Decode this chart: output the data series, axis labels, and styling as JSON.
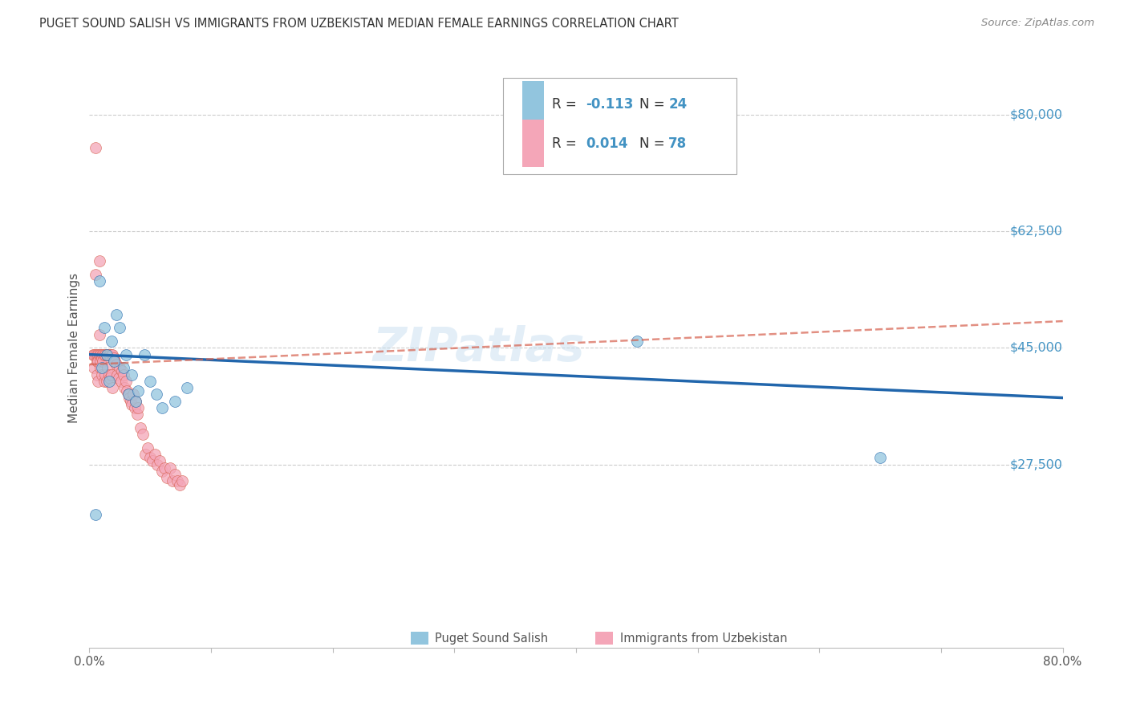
{
  "title": "PUGET SOUND SALISH VS IMMIGRANTS FROM UZBEKISTAN MEDIAN FEMALE EARNINGS CORRELATION CHART",
  "source": "Source: ZipAtlas.com",
  "ylabel": "Median Female Earnings",
  "xlim": [
    0.0,
    0.8
  ],
  "ylim": [
    0,
    90000
  ],
  "ytick_vals": [
    27500,
    45000,
    62500,
    80000
  ],
  "ytick_labels": [
    "$27,500",
    "$45,000",
    "$62,500",
    "$80,000"
  ],
  "color_blue": "#92c5de",
  "color_pink": "#f4a6b8",
  "color_blue_line": "#2166ac",
  "color_pink_line": "#d6604d",
  "color_label_blue": "#4393c3",
  "watermark": "ZIPatlas",
  "blue_scatter_x": [
    0.005,
    0.008,
    0.01,
    0.012,
    0.014,
    0.016,
    0.018,
    0.02,
    0.022,
    0.025,
    0.028,
    0.03,
    0.032,
    0.035,
    0.038,
    0.04,
    0.045,
    0.05,
    0.055,
    0.06,
    0.07,
    0.08,
    0.45,
    0.65
  ],
  "blue_scatter_y": [
    20000,
    55000,
    42000,
    48000,
    44000,
    40000,
    46000,
    43000,
    50000,
    48000,
    42000,
    44000,
    38000,
    41000,
    37000,
    38500,
    44000,
    40000,
    38000,
    36000,
    37000,
    39000,
    46000,
    28500
  ],
  "pink_scatter_x": [
    0.003,
    0.004,
    0.004,
    0.005,
    0.005,
    0.005,
    0.006,
    0.006,
    0.006,
    0.007,
    0.007,
    0.007,
    0.008,
    0.008,
    0.008,
    0.009,
    0.009,
    0.009,
    0.01,
    0.01,
    0.01,
    0.011,
    0.011,
    0.012,
    0.012,
    0.013,
    0.013,
    0.014,
    0.014,
    0.015,
    0.015,
    0.016,
    0.016,
    0.017,
    0.017,
    0.018,
    0.018,
    0.019,
    0.019,
    0.02,
    0.021,
    0.022,
    0.023,
    0.024,
    0.025,
    0.026,
    0.027,
    0.028,
    0.029,
    0.03,
    0.031,
    0.032,
    0.033,
    0.034,
    0.035,
    0.036,
    0.037,
    0.038,
    0.039,
    0.04,
    0.042,
    0.044,
    0.046,
    0.048,
    0.05,
    0.052,
    0.054,
    0.056,
    0.058,
    0.06,
    0.062,
    0.064,
    0.066,
    0.068,
    0.07,
    0.072,
    0.074,
    0.076
  ],
  "pink_scatter_y": [
    44000,
    44000,
    42000,
    75000,
    56000,
    44000,
    44000,
    43000,
    41000,
    44000,
    43000,
    40000,
    58000,
    47000,
    44000,
    44000,
    43000,
    42000,
    44000,
    43500,
    41000,
    44000,
    43000,
    44000,
    40000,
    44000,
    41000,
    44000,
    40000,
    44000,
    42000,
    44000,
    41000,
    44000,
    40500,
    44000,
    41000,
    44000,
    39000,
    43500,
    43000,
    42500,
    41000,
    40500,
    42000,
    40000,
    41500,
    41000,
    39000,
    40000,
    38500,
    38000,
    37500,
    37000,
    36500,
    38000,
    36000,
    37000,
    35000,
    36000,
    33000,
    32000,
    29000,
    30000,
    28500,
    28000,
    29000,
    27500,
    28000,
    26500,
    27000,
    25500,
    27000,
    25000,
    26000,
    25000,
    24500,
    25000
  ],
  "blue_line_x0": 0.0,
  "blue_line_x1": 0.8,
  "blue_line_y0": 44000,
  "blue_line_y1": 37500,
  "pink_line_x0": 0.0,
  "pink_line_x1": 0.8,
  "pink_line_y0": 42500,
  "pink_line_y1": 49000
}
